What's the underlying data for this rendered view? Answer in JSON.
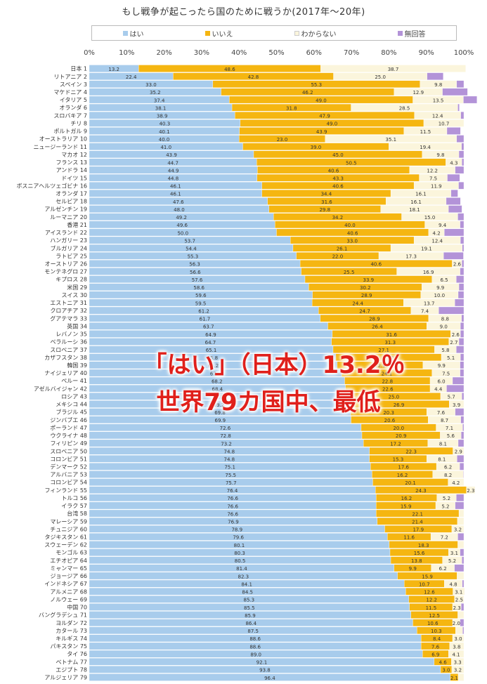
{
  "colors": {
    "yes": "#a8ccec",
    "no": "#f5b611",
    "unknown": "#fbf5dc",
    "noanswer": "#b393d8"
  },
  "annotation": {
    "line1": "「はい」（日本）13.2％",
    "line2": "世界79カ国中、最低"
  },
  "chart_data": {
    "type": "bar",
    "orientation": "horizontal",
    "stacked": true,
    "percent": true,
    "title": "もし戦争が起こったら国のために戦うか(2017年～20年)",
    "legend": [
      "はい",
      "いいえ",
      "わからない",
      "無回答"
    ],
    "legend_position": "top",
    "xlim": [
      0,
      100
    ],
    "x_ticks": [
      "0%",
      "10%",
      "20%",
      "30%",
      "40%",
      "50%",
      "60%",
      "70%",
      "80%",
      "90%",
      "100%"
    ],
    "grid": false,
    "categories": [
      "日本 1",
      "リトアニア 2",
      "スペイン 3",
      "マケドニア 4",
      "イタリア 5",
      "オランダ 6",
      "スロバキア 7",
      "チリ 8",
      "ポルトガル 9",
      "オーストラリア 10",
      "ニュージーランド 11",
      "マカオ 12",
      "フランス 13",
      "アンドラ 14",
      "ドイツ 15",
      "ボスニアヘルツェゴビナ 16",
      "オランダ 17",
      "セルビア 18",
      "アルゼンチン 19",
      "ルーマニア 20",
      "香港 21",
      "アイスランド 22",
      "ハンガリー 23",
      "ブルガリア 24",
      "ラトビア 25",
      "オーストリア 26",
      "モンテネグロ 27",
      "キプロス 28",
      "米国 29",
      "スイス 30",
      "エストニア 31",
      "クロアチア 32",
      "グアテマラ 33",
      "英国 34",
      "レバノン 35",
      "ベラルーシ 36",
      "スロベニア 37",
      "カザフスタン 38",
      "韓国 39",
      "ナイジェリア 40",
      "ペルー 41",
      "アゼルバイジャン 42",
      "ロシア 43",
      "メキシコ 44",
      "ブラジル 45",
      "ジンバブエ 46",
      "ポーランド 47",
      "ウクライナ 48",
      "フィリピン 49",
      "スロベニア 50",
      "コロンビア 51",
      "デンマーク 52",
      "アルバニア 53",
      "コロンビア 54",
      "フィンランド 55",
      "トルコ 56",
      "イラク 57",
      "台湾 58",
      "マレーシア 59",
      "チュニジア 60",
      "タジキスタン 61",
      "スウェーデン 62",
      "モンゴル 63",
      "エチオピア 64",
      "ミャンマー 65",
      "ジョージア 66",
      "インドネシア 67",
      "アルメニア 68",
      "ノルウェー 69",
      "中国 70",
      "バングラデシュ 71",
      "ヨルダン 72",
      "カタール 73",
      "キルギス 74",
      "パキスタン 75",
      "タイ 76",
      "ベトナム 77",
      "エジプト 78",
      "アルジェリア 79"
    ],
    "series": [
      {
        "name": "はい",
        "values": [
          13.2,
          22.4,
          33.0,
          35.2,
          37.4,
          38.1,
          38.9,
          40.3,
          40.1,
          40.0,
          41.0,
          43.9,
          44.7,
          44.9,
          44.8,
          46.1,
          46.1,
          47.6,
          48.0,
          49.2,
          49.6,
          50.0,
          53.7,
          54.4,
          55.3,
          56.3,
          56.6,
          57.6,
          58.6,
          59.6,
          59.5,
          61.2,
          61.7,
          63.7,
          64.9,
          64.7,
          65.1,
          65.8,
          66.2,
          67.4,
          68.2,
          68.4,
          68.8,
          69.2,
          69.8,
          69.9,
          72.6,
          72.8,
          73.2,
          74.8,
          74.8,
          75.1,
          75.5,
          75.7,
          76.4,
          76.6,
          76.6,
          76.6,
          76.9,
          78.9,
          79.6,
          80.1,
          80.3,
          80.5,
          81.4,
          82.3,
          84.1,
          84.5,
          85.3,
          85.5,
          85.9,
          86.4,
          87.5,
          88.6,
          88.6,
          89.0,
          92.1,
          93.8,
          96.4
        ]
      },
      {
        "name": "いいえ",
        "values": [
          48.6,
          42.8,
          55.3,
          46.2,
          49.0,
          31.8,
          47.9,
          49.0,
          43.9,
          23.0,
          39.0,
          45.0,
          50.5,
          40.6,
          43.3,
          40.6,
          34.4,
          31.6,
          29.8,
          34.2,
          40.0,
          40.6,
          33.0,
          26.1,
          22.0,
          40.6,
          25.5,
          33.9,
          30.2,
          28.9,
          24.4,
          24.7,
          28.9,
          26.4,
          31.6,
          31.3,
          27.1,
          28.2,
          22.9,
          24.1,
          22.8,
          22.6,
          25.0,
          26.9,
          20.3,
          20.6,
          20.0,
          20.9,
          17.2,
          22.3,
          15.3,
          17.6,
          16.2,
          20.1,
          24.3,
          16.2,
          15.9,
          22.1,
          21.4,
          17.9,
          11.6,
          18.3,
          15.6,
          13.8,
          9.9,
          15.9,
          10.7,
          12.6,
          12.2,
          11.5,
          12.5,
          10.6,
          10.3,
          8.4,
          7.6,
          6.9,
          4.6,
          3.0,
          2.1
        ]
      },
      {
        "name": "わからない",
        "values": [
          38.7,
          25.0,
          9.8,
          12.9,
          13.5,
          28.5,
          12.4,
          10.7,
          11.5,
          35.1,
          19.4,
          9.8,
          4.3,
          12.2,
          7.5,
          11.9,
          16.1,
          16.1,
          18.1,
          15.0,
          9.4,
          4.2,
          12.4,
          19.1,
          17.3,
          2.6,
          16.9,
          6.5,
          9.9,
          10.0,
          13.7,
          7.4,
          8.8,
          9.0,
          2.6,
          2.7,
          5.8,
          5.1,
          9.9,
          7.5,
          6.0,
          4.4,
          5.7,
          3.9,
          7.6,
          8.7,
          7.1,
          5.6,
          8.1,
          2.9,
          8.1,
          6.2,
          8.2,
          4.2,
          2.3,
          5.2,
          5.2,
          1.3,
          1.7,
          3.2,
          7.2,
          1.6,
          3.1,
          5.2,
          6.2,
          1.8,
          4.8,
          3.1,
          2.5,
          2.3,
          1.6,
          2.0,
          1.9,
          3.0,
          3.8,
          4.1,
          3.3,
          3.2,
          1.5
        ]
      },
      {
        "name": "無回答",
        "values": [
          0.0,
          4.3,
          1.9,
          6.7,
          3.6,
          0.4,
          0.8,
          0.0,
          3.6,
          1.9,
          0.6,
          1.3,
          0.5,
          2.3,
          3.3,
          1.4,
          1.8,
          3.8,
          3.6,
          1.6,
          1.0,
          5.2,
          0.9,
          0.4,
          5.3,
          0.5,
          1.0,
          2.0,
          1.3,
          1.5,
          2.4,
          6.7,
          0.6,
          0.9,
          0.9,
          1.3,
          2.0,
          0.9,
          1.0,
          1.0,
          3.0,
          4.6,
          0.5,
          0.0,
          2.3,
          0.8,
          0.3,
          0.7,
          1.5,
          0.0,
          1.8,
          1.1,
          0.1,
          0.0,
          0.0,
          2.0,
          2.3,
          0.0,
          0.0,
          0.0,
          1.6,
          0.0,
          1.0,
          0.5,
          2.5,
          0.0,
          0.4,
          0.0,
          0.0,
          0.7,
          0.0,
          1.0,
          0.3,
          0.0,
          0.0,
          0.0,
          0.0,
          0.0,
          0.0
        ]
      }
    ]
  }
}
